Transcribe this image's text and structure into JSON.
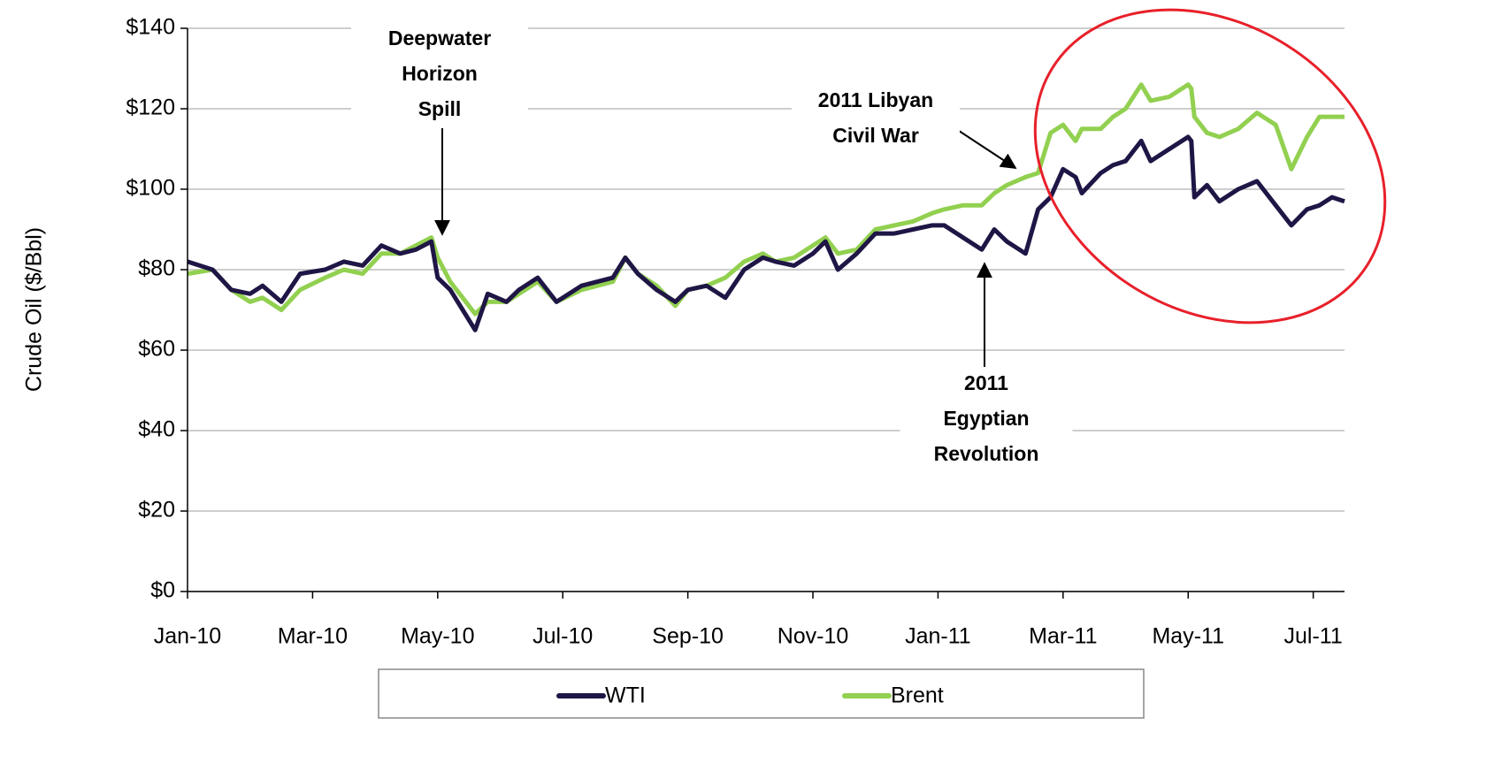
{
  "chart_data": {
    "type": "line",
    "y_label": "Crude Oil ($/Bbl)",
    "xlim": [
      0,
      18.5
    ],
    "xticks": [
      {
        "value": 0,
        "label": "Jan-10"
      },
      {
        "value": 2,
        "label": "Mar-10"
      },
      {
        "value": 4,
        "label": "May-10"
      },
      {
        "value": 6,
        "label": "Jul-10"
      },
      {
        "value": 8,
        "label": "Sep-10"
      },
      {
        "value": 10,
        "label": "Nov-10"
      },
      {
        "value": 12,
        "label": "Jan-11"
      },
      {
        "value": 14,
        "label": "Mar-11"
      },
      {
        "value": 16,
        "label": "May-11"
      },
      {
        "value": 18,
        "label": "Jul-11"
      }
    ],
    "ylim": [
      0,
      140
    ],
    "yticks": [
      {
        "value": 0,
        "label": "$0"
      },
      {
        "value": 20,
        "label": "$20"
      },
      {
        "value": 40,
        "label": "$40"
      },
      {
        "value": 60,
        "label": "$60"
      },
      {
        "value": 80,
        "label": "$80"
      },
      {
        "value": 100,
        "label": "$100"
      },
      {
        "value": 120,
        "label": "$120"
      },
      {
        "value": 140,
        "label": "$140"
      }
    ],
    "grid": true,
    "legend": "bottom",
    "x": [
      0,
      0.4,
      0.7,
      1.0,
      1.2,
      1.5,
      1.8,
      2.2,
      2.5,
      2.8,
      3.1,
      3.4,
      3.65,
      3.9,
      4.0,
      4.2,
      4.4,
      4.6,
      4.8,
      5.1,
      5.3,
      5.6,
      5.9,
      6.3,
      6.8,
      7.0,
      7.2,
      7.5,
      7.8,
      8.0,
      8.3,
      8.6,
      8.9,
      9.2,
      9.4,
      9.7,
      10.0,
      10.2,
      10.4,
      10.7,
      11.0,
      11.3,
      11.6,
      11.9,
      12.1,
      12.4,
      12.7,
      12.9,
      13.1,
      13.4,
      13.6,
      13.8,
      14.0,
      14.2,
      14.3,
      14.6,
      14.8,
      15.0,
      15.25,
      15.4,
      15.7,
      16.0,
      16.05,
      16.1,
      16.3,
      16.5,
      16.8,
      17.1,
      17.4,
      17.65,
      17.9,
      18.1,
      18.3,
      18.5
    ],
    "series": [
      {
        "name": "WTI",
        "color": "#1f1646",
        "values": [
          82,
          80,
          75,
          74,
          76,
          72,
          79,
          80,
          82,
          81,
          86,
          84,
          85,
          87,
          78,
          75,
          70,
          65,
          74,
          72,
          75,
          78,
          72,
          76,
          78,
          83,
          79,
          75,
          72,
          75,
          76,
          73,
          80,
          83,
          82,
          81,
          84,
          87,
          80,
          84,
          89,
          89,
          90,
          91,
          91,
          88,
          85,
          90,
          87,
          84,
          95,
          98,
          105,
          103,
          99,
          104,
          106,
          107,
          112,
          107,
          110,
          113,
          112,
          98,
          101,
          97,
          100,
          102,
          96,
          91,
          95,
          96,
          98,
          97
        ]
      },
      {
        "name": "Brent",
        "color": "#92d050",
        "values": [
          79,
          80,
          75,
          72,
          73,
          70,
          75,
          78,
          80,
          79,
          84,
          84,
          86,
          88,
          83,
          77,
          73,
          69,
          72,
          72,
          74,
          77,
          72,
          75,
          77,
          83,
          79,
          76,
          71,
          75,
          76,
          78,
          82,
          84,
          82,
          83,
          86,
          88,
          84,
          85,
          90,
          91,
          92,
          94,
          95,
          96,
          96,
          99,
          101,
          103,
          104,
          114,
          116,
          112,
          115,
          115,
          118,
          120,
          126,
          122,
          123,
          126,
          125,
          118,
          114,
          113,
          115,
          119,
          116,
          105,
          113,
          118,
          118,
          118
        ]
      }
    ],
    "annotations": [
      {
        "lines": [
          "Deepwater",
          "Horizon",
          "Spill"
        ]
      },
      {
        "lines": [
          "2011 Libyan",
          "Civil War"
        ]
      },
      {
        "lines": [
          "2011",
          "Egyptian",
          "Revolution"
        ]
      }
    ]
  }
}
